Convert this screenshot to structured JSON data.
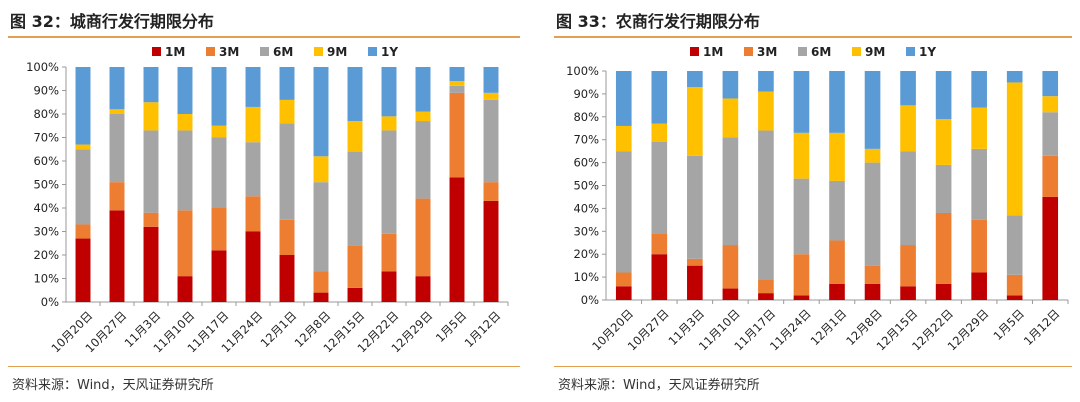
{
  "colors": {
    "1M": "#C00000",
    "3M": "#ED7D31",
    "6M": "#A5A5A5",
    "9M": "#FFC000",
    "1Y": "#5B9BD5",
    "accent_rule": "#E0A050"
  },
  "panels": [
    {
      "title": "图 32：城商行发行期限分布",
      "source": "资料来源：Wind，天风证券研究所"
    },
    {
      "title": "图 33：农商行发行期限分布",
      "source": "资料来源：Wind，天风证券研究所"
    }
  ],
  "chart_data": [
    {
      "type": "bar",
      "stacked": true,
      "categories": [
        "10月20日",
        "10月27日",
        "11月3日",
        "11月10日",
        "11月17日",
        "11月24日",
        "12月1日",
        "12月8日",
        "12月15日",
        "12月22日",
        "12月29日",
        "1月5日",
        "1月12日"
      ],
      "series": [
        {
          "name": "1M",
          "values": [
            27,
            39,
            32,
            11,
            22,
            30,
            20,
            4,
            6,
            13,
            11,
            53,
            43
          ]
        },
        {
          "name": "3M",
          "values": [
            6,
            12,
            6,
            28,
            18,
            15,
            15,
            9,
            18,
            16,
            33,
            36,
            8
          ]
        },
        {
          "name": "6M",
          "values": [
            32,
            29,
            35,
            34,
            30,
            23,
            41,
            38,
            40,
            44,
            33,
            3,
            35
          ]
        },
        {
          "name": "9M",
          "values": [
            2,
            2,
            12,
            7,
            5,
            15,
            10,
            11,
            13,
            6,
            4,
            2,
            3
          ]
        },
        {
          "name": "1Y",
          "values": [
            33,
            18,
            15,
            20,
            25,
            17,
            14,
            38,
            23,
            21,
            19,
            6,
            11
          ]
        }
      ],
      "yticks": [
        "0%",
        "10%",
        "20%",
        "30%",
        "40%",
        "50%",
        "60%",
        "70%",
        "80%",
        "90%",
        "100%"
      ],
      "ylim": [
        0,
        100
      ],
      "legend": "top",
      "grid": false
    },
    {
      "type": "bar",
      "stacked": true,
      "categories": [
        "10月20日",
        "10月27日",
        "11月3日",
        "11月10日",
        "11月17日",
        "11月24日",
        "12月1日",
        "12月8日",
        "12月15日",
        "12月22日",
        "12月29日",
        "1月5日",
        "1月12日"
      ],
      "series": [
        {
          "name": "1M",
          "values": [
            6,
            20,
            15,
            5,
            3,
            2,
            7,
            7,
            6,
            7,
            12,
            2,
            45
          ]
        },
        {
          "name": "3M",
          "values": [
            6,
            9,
            3,
            19,
            6,
            18,
            19,
            8,
            18,
            31,
            23,
            9,
            18
          ]
        },
        {
          "name": "6M",
          "values": [
            53,
            40,
            45,
            47,
            65,
            33,
            26,
            45,
            41,
            21,
            31,
            26,
            19
          ]
        },
        {
          "name": "9M",
          "values": [
            11,
            8,
            30,
            17,
            17,
            20,
            21,
            6,
            20,
            20,
            18,
            58,
            7
          ]
        },
        {
          "name": "1Y",
          "values": [
            24,
            23,
            7,
            12,
            9,
            27,
            27,
            34,
            15,
            21,
            16,
            5,
            11
          ]
        }
      ],
      "yticks": [
        "0%",
        "10%",
        "20%",
        "30%",
        "40%",
        "50%",
        "60%",
        "70%",
        "80%",
        "90%",
        "100%"
      ],
      "ylim": [
        0,
        100
      ],
      "legend": "top",
      "grid": false
    }
  ]
}
